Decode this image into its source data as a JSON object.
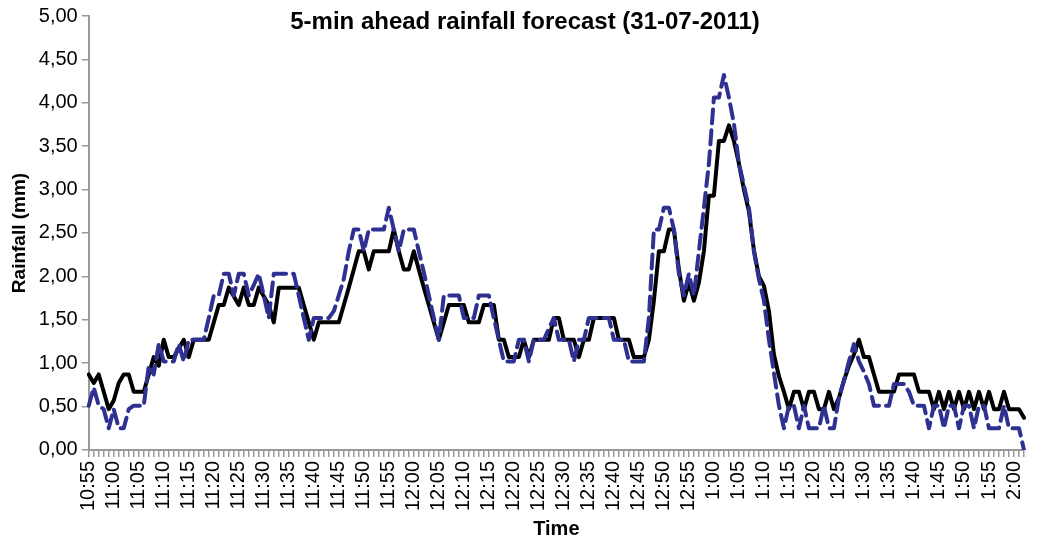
{
  "chart_data": {
    "type": "line",
    "title": "5-min ahead rainfall forecast (31-07-2011)",
    "xlabel": "Time",
    "ylabel": "Rainfall (mm)",
    "categories": [
      "10:55",
      null,
      null,
      null,
      null,
      "11:00",
      null,
      null,
      null,
      null,
      "11:05",
      null,
      null,
      null,
      null,
      "11:10",
      null,
      null,
      null,
      null,
      "11:15",
      null,
      null,
      null,
      null,
      "11:20",
      null,
      null,
      null,
      null,
      "11:25",
      null,
      null,
      null,
      null,
      "11:30",
      null,
      null,
      null,
      null,
      "11:35",
      null,
      null,
      null,
      null,
      "11:40",
      null,
      null,
      null,
      null,
      "11:45",
      null,
      null,
      null,
      null,
      "11:50",
      null,
      null,
      null,
      null,
      "11:55",
      null,
      null,
      null,
      null,
      "12:00",
      null,
      null,
      null,
      null,
      "12:05",
      null,
      null,
      null,
      null,
      "12:10",
      null,
      null,
      null,
      null,
      "12:15",
      null,
      null,
      null,
      null,
      "12:20",
      null,
      null,
      null,
      null,
      "12:25",
      null,
      null,
      null,
      null,
      "12:30",
      null,
      null,
      null,
      null,
      "12:35",
      null,
      null,
      null,
      null,
      "12:40",
      null,
      null,
      null,
      null,
      "12:45",
      null,
      null,
      null,
      null,
      "12:50",
      null,
      null,
      null,
      null,
      "12:55",
      null,
      null,
      null,
      null,
      "1:00",
      null,
      null,
      null,
      null,
      "1:05",
      null,
      null,
      null,
      null,
      "1:10",
      null,
      null,
      null,
      null,
      "1:15",
      null,
      null,
      null,
      null,
      "1:20",
      null,
      null,
      null,
      null,
      "1:25",
      null,
      null,
      null,
      null,
      "1:30",
      null,
      null,
      null,
      null,
      "1:35",
      null,
      null,
      null,
      null,
      "1:40",
      null,
      null,
      null,
      null,
      "1:45",
      null,
      null,
      null,
      null,
      "1:50",
      null,
      null,
      null,
      null,
      "1:55",
      null,
      null,
      null,
      null,
      "2:00",
      null,
      null
    ],
    "series": [
      {
        "color": "#000000",
        "line_style": "solid",
        "values": [
          0.87,
          0.77,
          0.87,
          0.67,
          0.47,
          0.57,
          0.77,
          0.87,
          0.87,
          0.67,
          0.67,
          0.67,
          0.87,
          1.07,
          0.97,
          1.27,
          1.07,
          1.07,
          1.17,
          1.27,
          1.07,
          1.27,
          1.27,
          1.27,
          1.27,
          1.47,
          1.67,
          1.67,
          1.87,
          1.77,
          1.67,
          1.87,
          1.67,
          1.67,
          1.87,
          1.77,
          1.67,
          1.47,
          1.87,
          1.87,
          1.87,
          1.87,
          1.87,
          1.67,
          1.47,
          1.27,
          1.47,
          1.47,
          1.47,
          1.47,
          1.47,
          1.67,
          1.87,
          2.08,
          2.29,
          2.29,
          2.08,
          2.29,
          2.29,
          2.29,
          2.29,
          2.54,
          2.29,
          2.08,
          2.08,
          2.29,
          2.08,
          1.87,
          1.67,
          1.47,
          1.27,
          1.47,
          1.67,
          1.67,
          1.67,
          1.67,
          1.47,
          1.47,
          1.47,
          1.67,
          1.67,
          1.67,
          1.27,
          1.27,
          1.07,
          1.07,
          1.07,
          1.27,
          1.07,
          1.27,
          1.27,
          1.27,
          1.27,
          1.52,
          1.52,
          1.27,
          1.27,
          1.27,
          1.07,
          1.27,
          1.27,
          1.52,
          1.52,
          1.52,
          1.52,
          1.52,
          1.27,
          1.27,
          1.27,
          1.07,
          1.07,
          1.07,
          1.27,
          1.72,
          2.29,
          2.29,
          2.54,
          2.54,
          2.08,
          1.72,
          1.93,
          1.72,
          1.93,
          2.29,
          2.93,
          2.93,
          3.56,
          3.56,
          3.74,
          3.56,
          3.3,
          3.0,
          2.75,
          2.3,
          2.0,
          1.89,
          1.6,
          1.1,
          0.85,
          0.67,
          0.47,
          0.67,
          0.67,
          0.47,
          0.67,
          0.67,
          0.47,
          0.47,
          0.67,
          0.47,
          0.6,
          0.8,
          0.97,
          1.1,
          1.27,
          1.07,
          1.07,
          0.87,
          0.67,
          0.67,
          0.67,
          0.67,
          0.87,
          0.87,
          0.87,
          0.87,
          0.67,
          0.67,
          0.67,
          0.47,
          0.67,
          0.47,
          0.67,
          0.47,
          0.67,
          0.47,
          0.67,
          0.47,
          0.67,
          0.47,
          0.67,
          0.47,
          0.47,
          0.67,
          0.47,
          0.47,
          0.47,
          0.37
        ]
      },
      {
        "color": "#2e3192",
        "line_style": "dashed",
        "values": [
          0.51,
          0.72,
          0.51,
          0.47,
          0.25,
          0.47,
          0.25,
          0.25,
          0.47,
          0.51,
          0.51,
          0.51,
          0.97,
          0.87,
          1.22,
          1.02,
          1.02,
          1.02,
          1.22,
          1.02,
          1.27,
          1.27,
          1.27,
          1.27,
          1.52,
          1.78,
          1.78,
          2.03,
          2.03,
          1.78,
          2.03,
          2.03,
          1.78,
          1.9,
          2.03,
          1.78,
          1.52,
          2.03,
          2.03,
          2.03,
          2.03,
          2.03,
          1.78,
          1.52,
          1.27,
          1.52,
          1.52,
          1.52,
          1.52,
          1.6,
          1.78,
          1.97,
          2.29,
          2.54,
          2.54,
          2.29,
          2.54,
          2.54,
          2.54,
          2.54,
          2.79,
          2.54,
          2.29,
          2.54,
          2.54,
          2.54,
          2.29,
          2.05,
          1.78,
          1.52,
          1.27,
          1.78,
          1.78,
          1.78,
          1.78,
          1.52,
          1.52,
          1.52,
          1.78,
          1.78,
          1.78,
          1.52,
          1.27,
          1.02,
          1.02,
          1.02,
          1.27,
          1.27,
          1.02,
          1.27,
          1.27,
          1.27,
          1.4,
          1.52,
          1.27,
          1.27,
          1.27,
          1.02,
          1.27,
          1.27,
          1.52,
          1.52,
          1.52,
          1.52,
          1.52,
          1.27,
          1.27,
          1.27,
          1.02,
          1.02,
          1.02,
          1.02,
          1.52,
          2.54,
          2.54,
          2.79,
          2.79,
          2.54,
          2.03,
          1.78,
          2.03,
          1.78,
          2.29,
          2.79,
          3.3,
          4.06,
          4.06,
          4.32,
          4.06,
          3.76,
          3.3,
          3.05,
          2.79,
          2.29,
          1.97,
          1.72,
          1.27,
          0.89,
          0.51,
          0.25,
          0.51,
          0.51,
          0.25,
          0.51,
          0.25,
          0.25,
          0.25,
          0.51,
          0.25,
          0.25,
          0.6,
          0.8,
          1.02,
          1.22,
          1.02,
          0.9,
          0.76,
          0.51,
          0.51,
          0.51,
          0.51,
          0.76,
          0.76,
          0.76,
          0.67,
          0.51,
          0.51,
          0.51,
          0.25,
          0.51,
          0.51,
          0.25,
          0.51,
          0.51,
          0.25,
          0.51,
          0.51,
          0.25,
          0.51,
          0.51,
          0.25,
          0.25,
          0.25,
          0.51,
          0.25,
          0.25,
          0.25,
          0
        ]
      }
    ],
    "ylim": [
      0,
      5
    ],
    "yticks": [
      {
        "value": 0,
        "label": "0,00"
      },
      {
        "value": 0.5,
        "label": "0,50"
      },
      {
        "value": 1,
        "label": "1,00"
      },
      {
        "value": 1.5,
        "label": "1,50"
      },
      {
        "value": 2,
        "label": "2,00"
      },
      {
        "value": 2.5,
        "label": "2,50"
      },
      {
        "value": 3,
        "label": "3,00"
      },
      {
        "value": 3.5,
        "label": "3,50"
      },
      {
        "value": 4,
        "label": "4,00"
      },
      {
        "value": 4.5,
        "label": "4,50"
      },
      {
        "value": 5,
        "label": "5,00"
      }
    ],
    "grid": false,
    "legend": false,
    "marker": "none"
  }
}
